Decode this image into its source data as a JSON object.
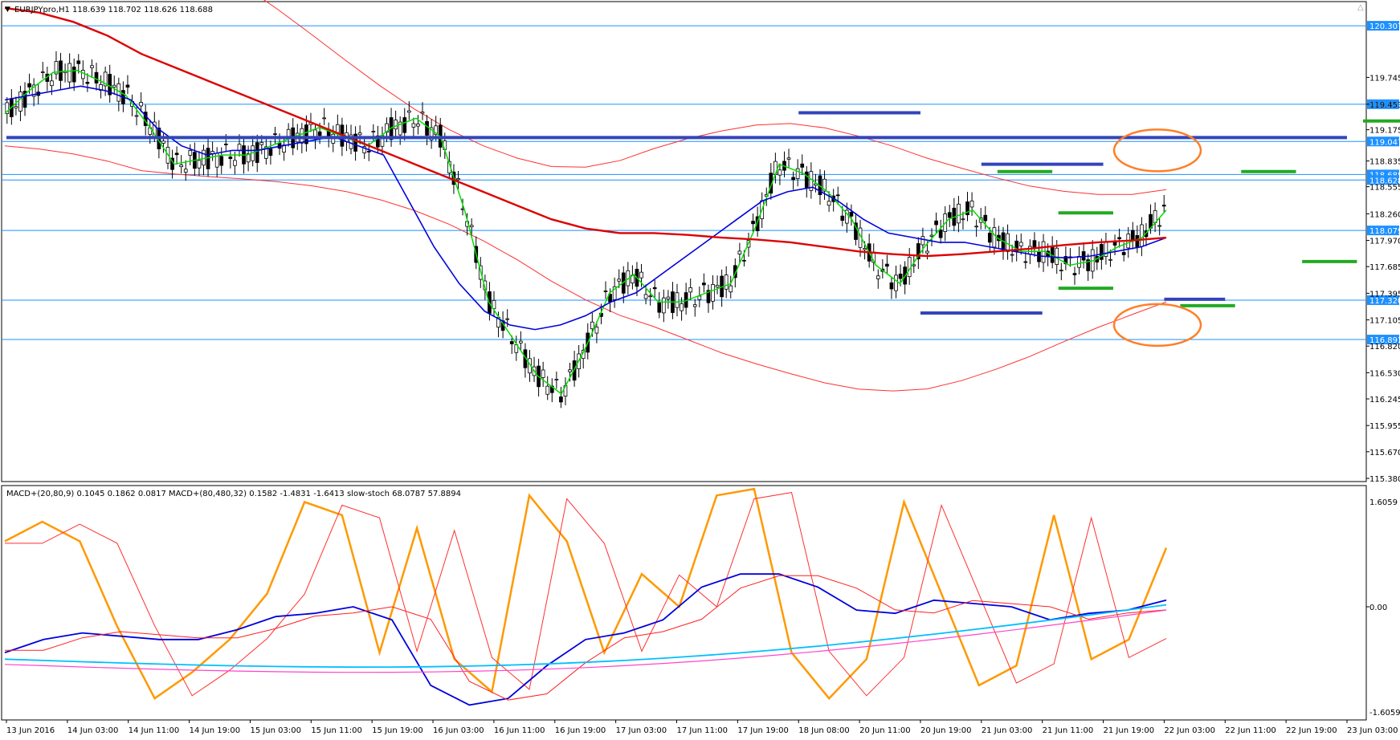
{
  "header": {
    "symbol": "EURJPYpro,H1",
    "ohlc": "118.639 118.702 118.626 118.688"
  },
  "indicator_header": "MACD+(20,80,9) 0.1045 0.1862 0.0817   MACD+(80,480,32) 0.1582 -1.4831 -1.6413   slow-stoch 68.0787 57.8894",
  "colors": {
    "background": "#ffffff",
    "grid": "#000000",
    "level_line": "#1e90ff",
    "bull": "#ffffff",
    "bear": "#000000",
    "ema_fast": "#00dd00",
    "ema_mid": "#0000dd",
    "ema_slow": "#dd0000",
    "envelope": "#ff3030",
    "support_blue": "#3344bb",
    "support_green": "#22aa22",
    "ellipse": "#ff7f27",
    "tag_bg": "#1e90ff",
    "macd_fast": "#0000dd",
    "macd_signal": "#ff2020",
    "macd_slow": "#00bfff",
    "macd_slow_signal": "#ff44cc",
    "stoch_k": "#ff9900",
    "stoch_d": "#ff3030"
  },
  "chart_data": [
    {
      "type": "candlestick",
      "symbol": "EURJPYpro",
      "timeframe": "H1",
      "y_range": [
        115.38,
        120.5
      ],
      "y_ticks": [
        "119.745",
        "119.453",
        "119.175",
        "118.835",
        "118.555",
        "118.260",
        "117.970",
        "117.685",
        "117.395",
        "117.105",
        "116.820",
        "116.530",
        "116.245",
        "115.955",
        "115.670",
        "115.380"
      ],
      "x_ticks": [
        "13 Jun 2016",
        "14 Jun 03:00",
        "14 Jun 11:00",
        "14 Jun 19:00",
        "15 Jun 03:00",
        "15 Jun 11:00",
        "15 Jun 19:00",
        "16 Jun 03:00",
        "16 Jun 11:00",
        "16 Jun 19:00",
        "17 Jun 03:00",
        "17 Jun 11:00",
        "17 Jun 19:00",
        "18 Jun 08:00",
        "20 Jun 11:00",
        "20 Jun 19:00",
        "21 Jun 03:00",
        "21 Jun 11:00",
        "21 Jun 19:00",
        "22 Jun 03:00",
        "22 Jun 11:00",
        "22 Jun 19:00",
        "23 Jun 03:00"
      ],
      "horizontal_levels": [
        "120.307",
        "119.453",
        "119.047",
        "118.688",
        "118.628",
        "118.079",
        "117.320",
        "116.891"
      ],
      "resistance_segments_blue": [
        {
          "from": "18 Jun 08:00",
          "to": "20 Jun 19:00",
          "price": 119.36
        },
        {
          "from": "21 Jun 03:00",
          "to": "21 Jun 19:00",
          "price": 118.8
        },
        {
          "from": "20 Jun 19:00",
          "to": "21 Jun 11:00",
          "price": 117.18
        },
        {
          "from": "22 Jun 03:00",
          "to": "22 Jun 11:00",
          "price": 117.33
        },
        {
          "from": "23 Jun 03:00",
          "to": "23 Jun 11:00",
          "price": 119.09
        }
      ],
      "support_segments_green": [
        {
          "from": "21 Jun 03:00",
          "to": "21 Jun 11:00",
          "price": 118.72
        },
        {
          "from": "21 Jun 11:00",
          "to": "21 Jun 19:00",
          "price": 118.27
        },
        {
          "from": "21 Jun 11:00",
          "to": "21 Jun 19:00",
          "price": 117.45
        },
        {
          "from": "22 Jun 03:00",
          "to": "22 Jun 11:00",
          "price": 117.26
        },
        {
          "from": "22 Jun 11:00",
          "to": "22 Jun 19:00",
          "price": 118.72
        },
        {
          "from": "22 Jun 19:00",
          "to": "23 Jun 03:00",
          "price": 117.74
        },
        {
          "from": "23 Jun 03:00",
          "to": "23 Jun 11:00",
          "price": 119.27
        }
      ],
      "series": [
        {
          "name": "EMA fast",
          "color": "#00dd00",
          "values": [
            119.35,
            119.6,
            119.8,
            119.82,
            119.7,
            119.55,
            119.2,
            118.8,
            118.85,
            118.9,
            118.9,
            119.0,
            119.1,
            119.2,
            119.1,
            119.0,
            119.2,
            119.3,
            119.1,
            118.3,
            117.3,
            116.9,
            116.5,
            116.3,
            116.8,
            117.4,
            117.6,
            117.3,
            117.3,
            117.4,
            117.5,
            118.1,
            118.8,
            118.7,
            118.5,
            118.2,
            117.7,
            117.5,
            117.9,
            118.2,
            118.3,
            118.0,
            117.85,
            117.85,
            117.7,
            117.75,
            117.9,
            118.0,
            118.3
          ]
        },
        {
          "name": "EMA mid",
          "color": "#0000dd",
          "values": [
            119.5,
            119.55,
            119.6,
            119.65,
            119.6,
            119.5,
            119.2,
            119.0,
            118.9,
            118.95,
            118.95,
            119.0,
            119.05,
            119.1,
            119.0,
            118.9,
            118.4,
            117.9,
            117.5,
            117.2,
            117.05,
            117.0,
            117.05,
            117.15,
            117.3,
            117.4,
            117.6,
            117.8,
            118.0,
            118.2,
            118.4,
            118.5,
            118.55,
            118.4,
            118.2,
            118.05,
            118.0,
            117.95,
            117.95,
            117.9,
            117.85,
            117.8,
            117.78,
            117.8,
            117.85,
            117.9,
            118.0
          ]
        },
        {
          "name": "EMA slow",
          "color": "#dd0000",
          "values": [
            120.5,
            120.45,
            120.35,
            120.2,
            120.0,
            119.85,
            119.7,
            119.55,
            119.4,
            119.25,
            119.1,
            118.95,
            118.8,
            118.65,
            118.5,
            118.35,
            118.2,
            118.1,
            118.05,
            118.05,
            118.03,
            118.0,
            117.98,
            117.95,
            117.9,
            117.85,
            117.82,
            117.8,
            117.82,
            117.85,
            117.88,
            117.92,
            117.95,
            117.97,
            118.0
          ]
        }
      ]
    },
    {
      "type": "line",
      "panel": "oscillators",
      "y_range": [
        -1.6059,
        1.6059
      ],
      "y_ticks": [
        "1.6059",
        "0.00",
        "-1.6059"
      ],
      "series": [
        {
          "name": "MACD+(20,80,9)",
          "values": [
            -0.7,
            -0.5,
            -0.4,
            -0.45,
            -0.5,
            -0.5,
            -0.35,
            -0.15,
            -0.1,
            0.0,
            -0.2,
            -1.2,
            -1.5,
            -1.4,
            -0.9,
            -0.5,
            -0.4,
            -0.2,
            0.3,
            0.5,
            0.5,
            0.3,
            -0.05,
            -0.1,
            0.1,
            0.05,
            0.0,
            -0.2,
            -0.1,
            -0.05,
            0.1
          ]
        },
        {
          "name": "slow-stoch",
          "values": [
            1.0,
            1.3,
            1.0,
            -0.3,
            -1.4,
            -1.0,
            -0.5,
            0.2,
            1.6,
            1.4,
            -0.7,
            1.2,
            -0.8,
            -1.3,
            1.7,
            1.0,
            -0.7,
            0.5,
            0.0,
            1.7,
            1.8,
            -0.7,
            -1.4,
            -0.8,
            1.6,
            0.2,
            -1.2,
            -0.9,
            1.4,
            -0.8,
            -0.5,
            0.9
          ]
        }
      ]
    }
  ]
}
